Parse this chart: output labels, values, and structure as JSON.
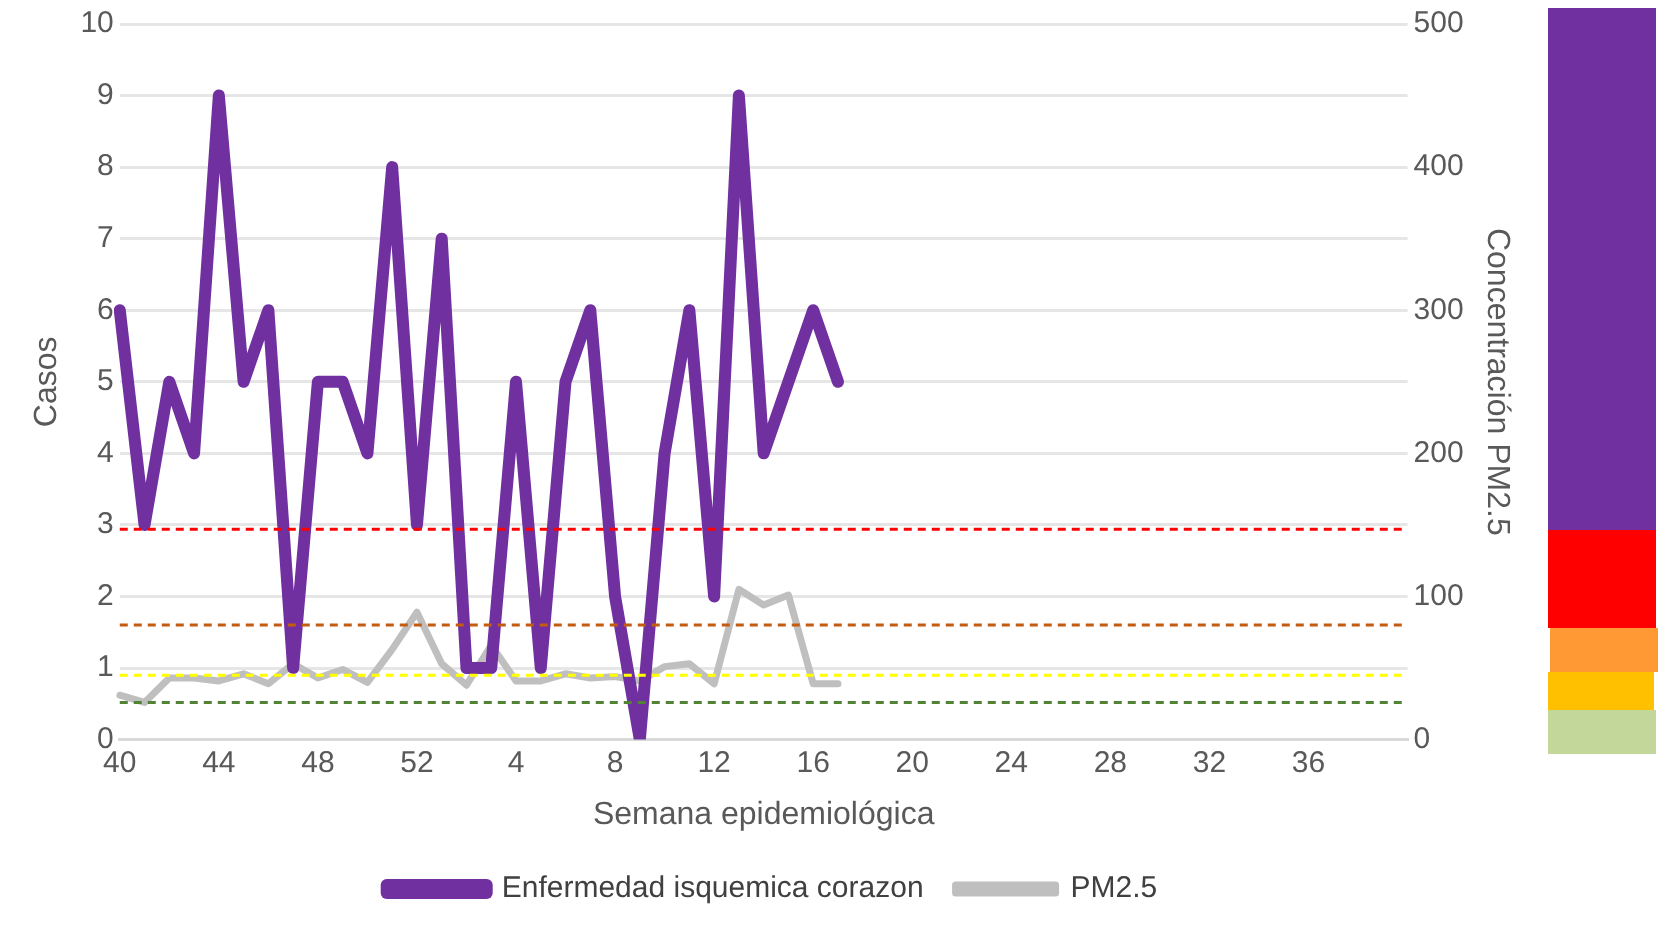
{
  "chart_data": {
    "type": "line",
    "xlabel": "Semana epidemiológica",
    "ylabel": "Casos",
    "y2label": "Concentración PM2.5",
    "categories": [
      "40",
      null,
      null,
      null,
      "44",
      null,
      null,
      null,
      "48",
      null,
      null,
      null,
      "52",
      null,
      null,
      null,
      "4",
      null,
      null,
      null,
      "8",
      null,
      null,
      null,
      "12",
      null,
      null,
      null,
      "16",
      null,
      null,
      null,
      "20",
      null,
      null,
      null,
      "24",
      null,
      null,
      null,
      "28",
      null,
      null,
      null,
      "32",
      null,
      null,
      null,
      "36",
      null,
      null,
      null,
      null
    ],
    "series": [
      {
        "name": "Enfermedad isquemica corazon",
        "color": "#7030a0",
        "values": [
          6,
          3,
          5,
          4,
          9,
          5,
          6,
          1,
          5,
          5,
          4,
          8,
          3,
          7,
          1,
          1,
          5,
          1,
          5,
          6,
          2,
          0,
          4,
          6,
          2,
          9,
          4,
          5,
          6,
          5,
          null,
          null,
          null,
          null,
          null,
          null,
          null,
          null,
          null,
          null,
          null,
          null,
          null,
          null,
          null,
          null,
          null,
          null,
          null,
          null,
          null,
          null,
          null
        ]
      },
      {
        "name": "PM2.5",
        "color": "#bfbfbf",
        "axis": "y2",
        "values": [
          31,
          26,
          43,
          43,
          41,
          46,
          39,
          53,
          43,
          49,
          40,
          63,
          89,
          53,
          38,
          66,
          41,
          41,
          46,
          43,
          44,
          41,
          51,
          53,
          39,
          105,
          94,
          101,
          39,
          39,
          null,
          null,
          null,
          null,
          null,
          null,
          null,
          null,
          null,
          null,
          null,
          null,
          null,
          null,
          null,
          null,
          null,
          null,
          null,
          null,
          null,
          null,
          null
        ]
      }
    ],
    "ylim": [
      0,
      10
    ],
    "yticks": [
      0,
      1,
      2,
      3,
      4,
      5,
      6,
      7,
      8,
      9,
      10
    ],
    "y2lim": [
      0,
      500
    ],
    "y2ticks": [
      0,
      100,
      200,
      300,
      400,
      500
    ],
    "ref_lines": [
      {
        "axis": "y2",
        "value": 147,
        "color": "#ff0000",
        "line_style": "dashed"
      },
      {
        "axis": "y2",
        "value": 80,
        "color": "#c55a11",
        "line_style": "dashed"
      },
      {
        "axis": "y2",
        "value": 45,
        "color": "#ffff00",
        "line_style": "dashed"
      },
      {
        "axis": "y2",
        "value": 26,
        "color": "#548235",
        "line_style": "dashed"
      }
    ],
    "grid": "y",
    "legend": "bottom",
    "marker": "none",
    "line_style": "solid"
  }
}
